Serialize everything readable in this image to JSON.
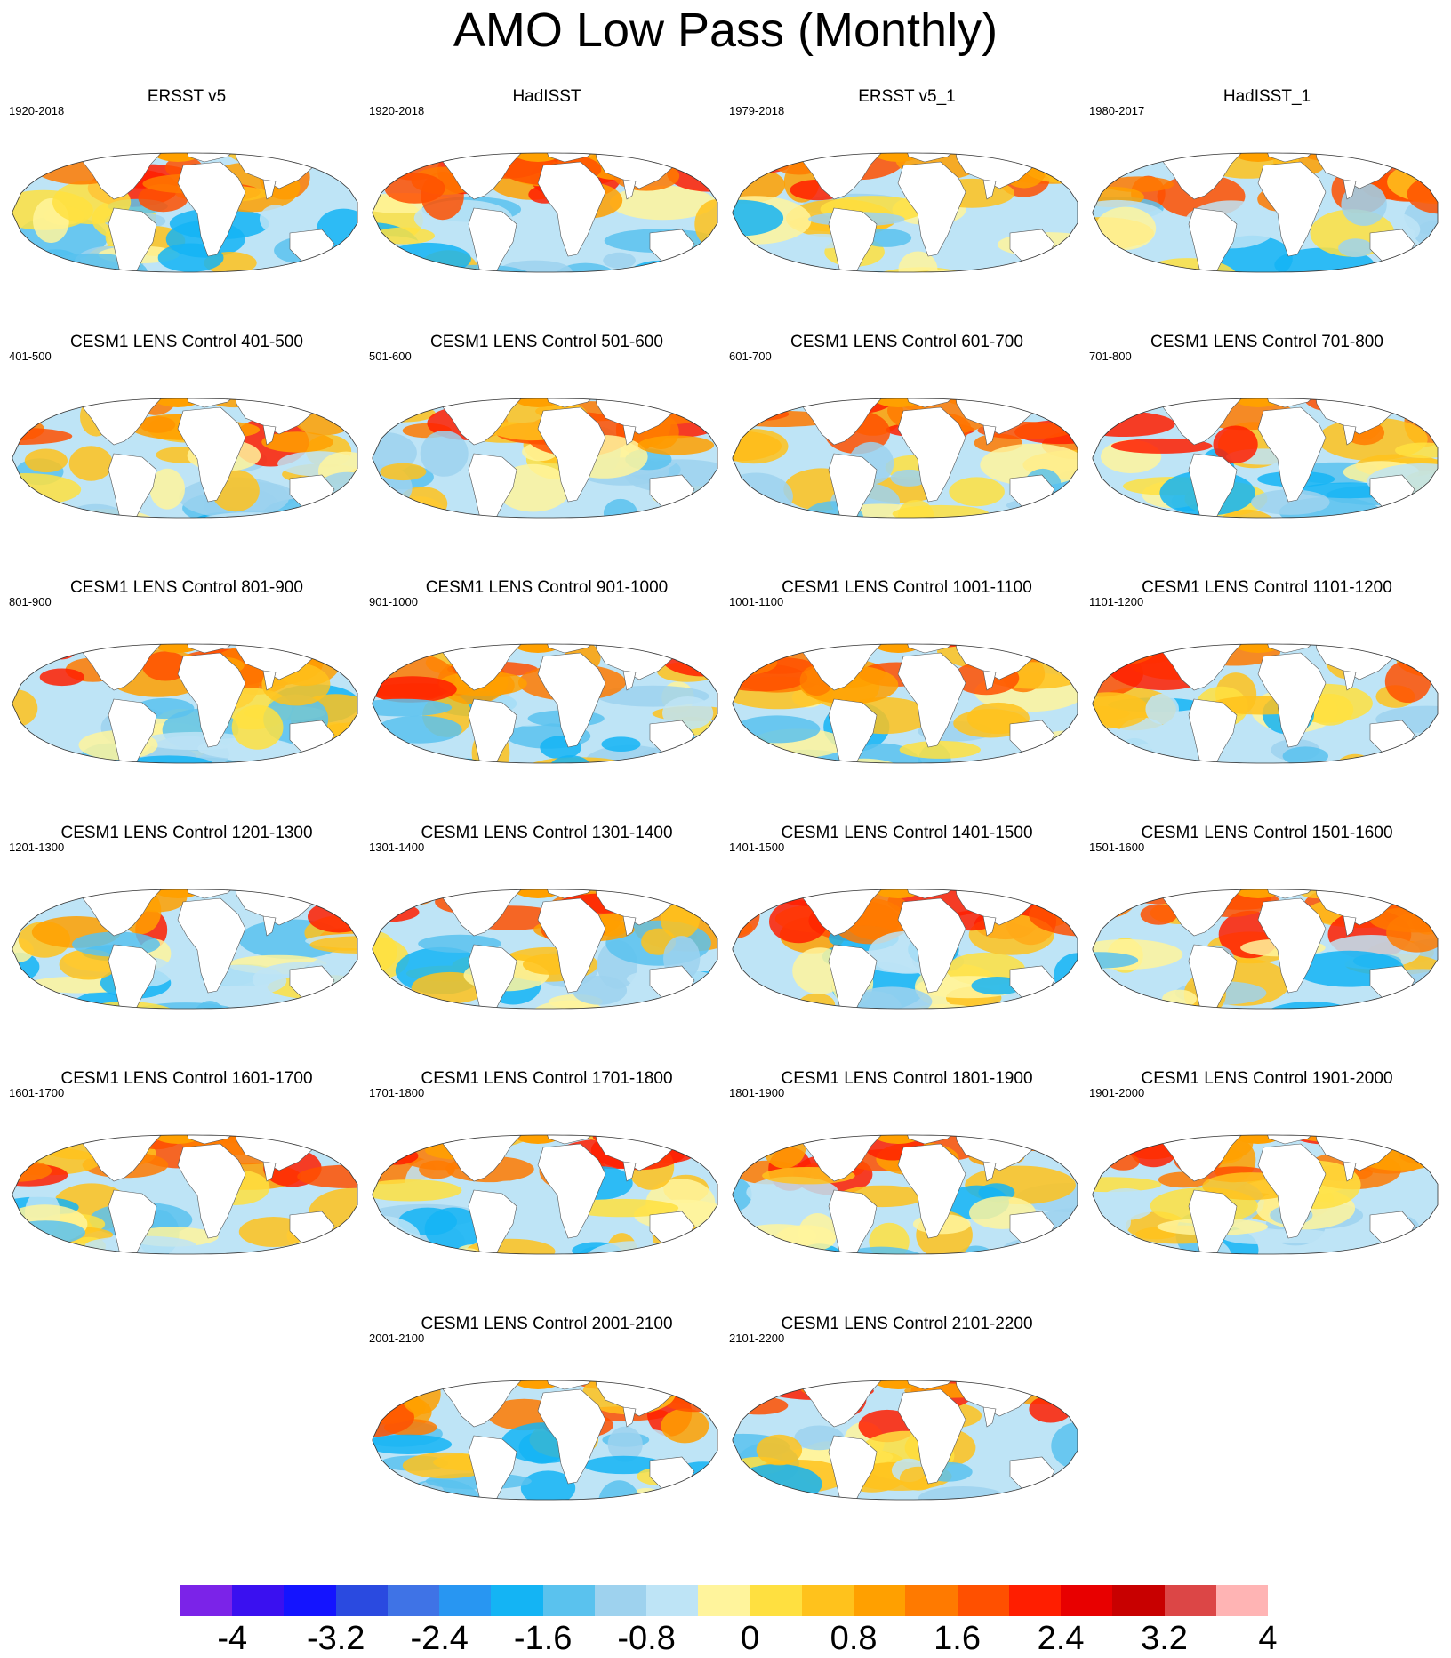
{
  "title": "AMO Low Pass (Monthly)",
  "panels": [
    {
      "title": "ERSST v5",
      "period": "1920-2018"
    },
    {
      "title": "HadISST",
      "period": "1920-2018"
    },
    {
      "title": "ERSST v5_1",
      "period": "1979-2018"
    },
    {
      "title": "HadISST_1",
      "period": "1980-2017"
    },
    {
      "title": "CESM1 LENS Control 401-500",
      "period": "401-500"
    },
    {
      "title": "CESM1 LENS Control 501-600",
      "period": "501-600"
    },
    {
      "title": "CESM1 LENS Control 601-700",
      "period": "601-700"
    },
    {
      "title": "CESM1 LENS Control 701-800",
      "period": "701-800"
    },
    {
      "title": "CESM1 LENS Control 801-900",
      "period": "801-900"
    },
    {
      "title": "CESM1 LENS Control 901-1000",
      "period": "901-1000"
    },
    {
      "title": "CESM1 LENS Control 1001-1100",
      "period": "1001-1100"
    },
    {
      "title": "CESM1 LENS Control 1101-1200",
      "period": "1101-1200"
    },
    {
      "title": "CESM1 LENS Control 1201-1300",
      "period": "1201-1300"
    },
    {
      "title": "CESM1 LENS Control 1301-1400",
      "period": "1301-1400"
    },
    {
      "title": "CESM1 LENS Control 1401-1500",
      "period": "1401-1500"
    },
    {
      "title": "CESM1 LENS Control 1501-1600",
      "period": "1501-1600"
    },
    {
      "title": "CESM1 LENS Control 1601-1700",
      "period": "1601-1700"
    },
    {
      "title": "CESM1 LENS Control 1701-1800",
      "period": "1701-1800"
    },
    {
      "title": "CESM1 LENS Control 1801-1900",
      "period": "1801-1900"
    },
    {
      "title": "CESM1 LENS Control 1901-2000",
      "period": "1901-2000"
    },
    {
      "title": "CESM1 LENS Control 2001-2100",
      "period": "2001-2100"
    },
    {
      "title": "CESM1 LENS Control 2101-2200",
      "period": "2101-2200"
    }
  ],
  "colorbar": {
    "colors": [
      "#7b23e8",
      "#3a10f0",
      "#1414ff",
      "#2a4ae0",
      "#3f73e6",
      "#2896f2",
      "#14b4f4",
      "#5ac2ee",
      "#9ed2ee",
      "#bee4f6",
      "#fff49c",
      "#ffe040",
      "#ffc21c",
      "#ffa000",
      "#ff7a00",
      "#ff5000",
      "#ff1e00",
      "#e80000",
      "#c80000",
      "#dc4646",
      "#ffb4b4"
    ],
    "labels": [
      "-4",
      "-3.2",
      "-2.4",
      "-1.6",
      "-0.8",
      "0",
      "0.8",
      "1.6",
      "2.4",
      "3.2",
      "4"
    ]
  }
}
